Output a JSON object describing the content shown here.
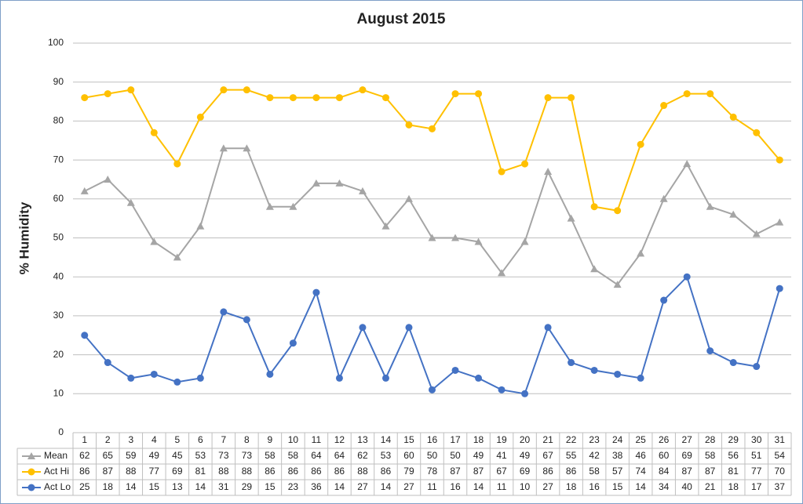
{
  "chart_data": {
    "type": "line",
    "title": "August 2015",
    "y_label": "% Humidity",
    "categories": [
      "1",
      "2",
      "3",
      "4",
      "5",
      "6",
      "7",
      "8",
      "9",
      "10",
      "11",
      "12",
      "13",
      "14",
      "15",
      "16",
      "17",
      "18",
      "19",
      "20",
      "21",
      "22",
      "23",
      "24",
      "25",
      "26",
      "27",
      "28",
      "29",
      "30",
      "31"
    ],
    "series": [
      {
        "name": "Mean",
        "color": "#a5a5a5",
        "marker": "triangle",
        "values": [
          62,
          65,
          59,
          49,
          45,
          53,
          73,
          73,
          58,
          58,
          64,
          64,
          62,
          53,
          60,
          50,
          50,
          49,
          41,
          49,
          67,
          55,
          42,
          38,
          46,
          60,
          69,
          58,
          56,
          51,
          54
        ]
      },
      {
        "name": "Act Hi",
        "color": "#ffc000",
        "marker": "circle",
        "values": [
          86,
          87,
          88,
          77,
          69,
          81,
          88,
          88,
          86,
          86,
          86,
          86,
          88,
          86,
          79,
          78,
          87,
          87,
          67,
          69,
          86,
          86,
          58,
          57,
          74,
          84,
          87,
          87,
          81,
          77,
          70
        ]
      },
      {
        "name": "Act Lo",
        "color": "#4472c4",
        "marker": "circle",
        "values": [
          25,
          18,
          14,
          15,
          13,
          14,
          31,
          29,
          15,
          23,
          36,
          14,
          27,
          14,
          27,
          11,
          16,
          14,
          11,
          10,
          27,
          18,
          16,
          15,
          14,
          34,
          40,
          21,
          18,
          17,
          37
        ]
      }
    ],
    "ylim": [
      0,
      100
    ],
    "yticks": [
      0,
      10,
      20,
      30,
      40,
      50,
      60,
      70,
      80,
      90,
      100
    ],
    "grid": true,
    "data_table": true
  }
}
